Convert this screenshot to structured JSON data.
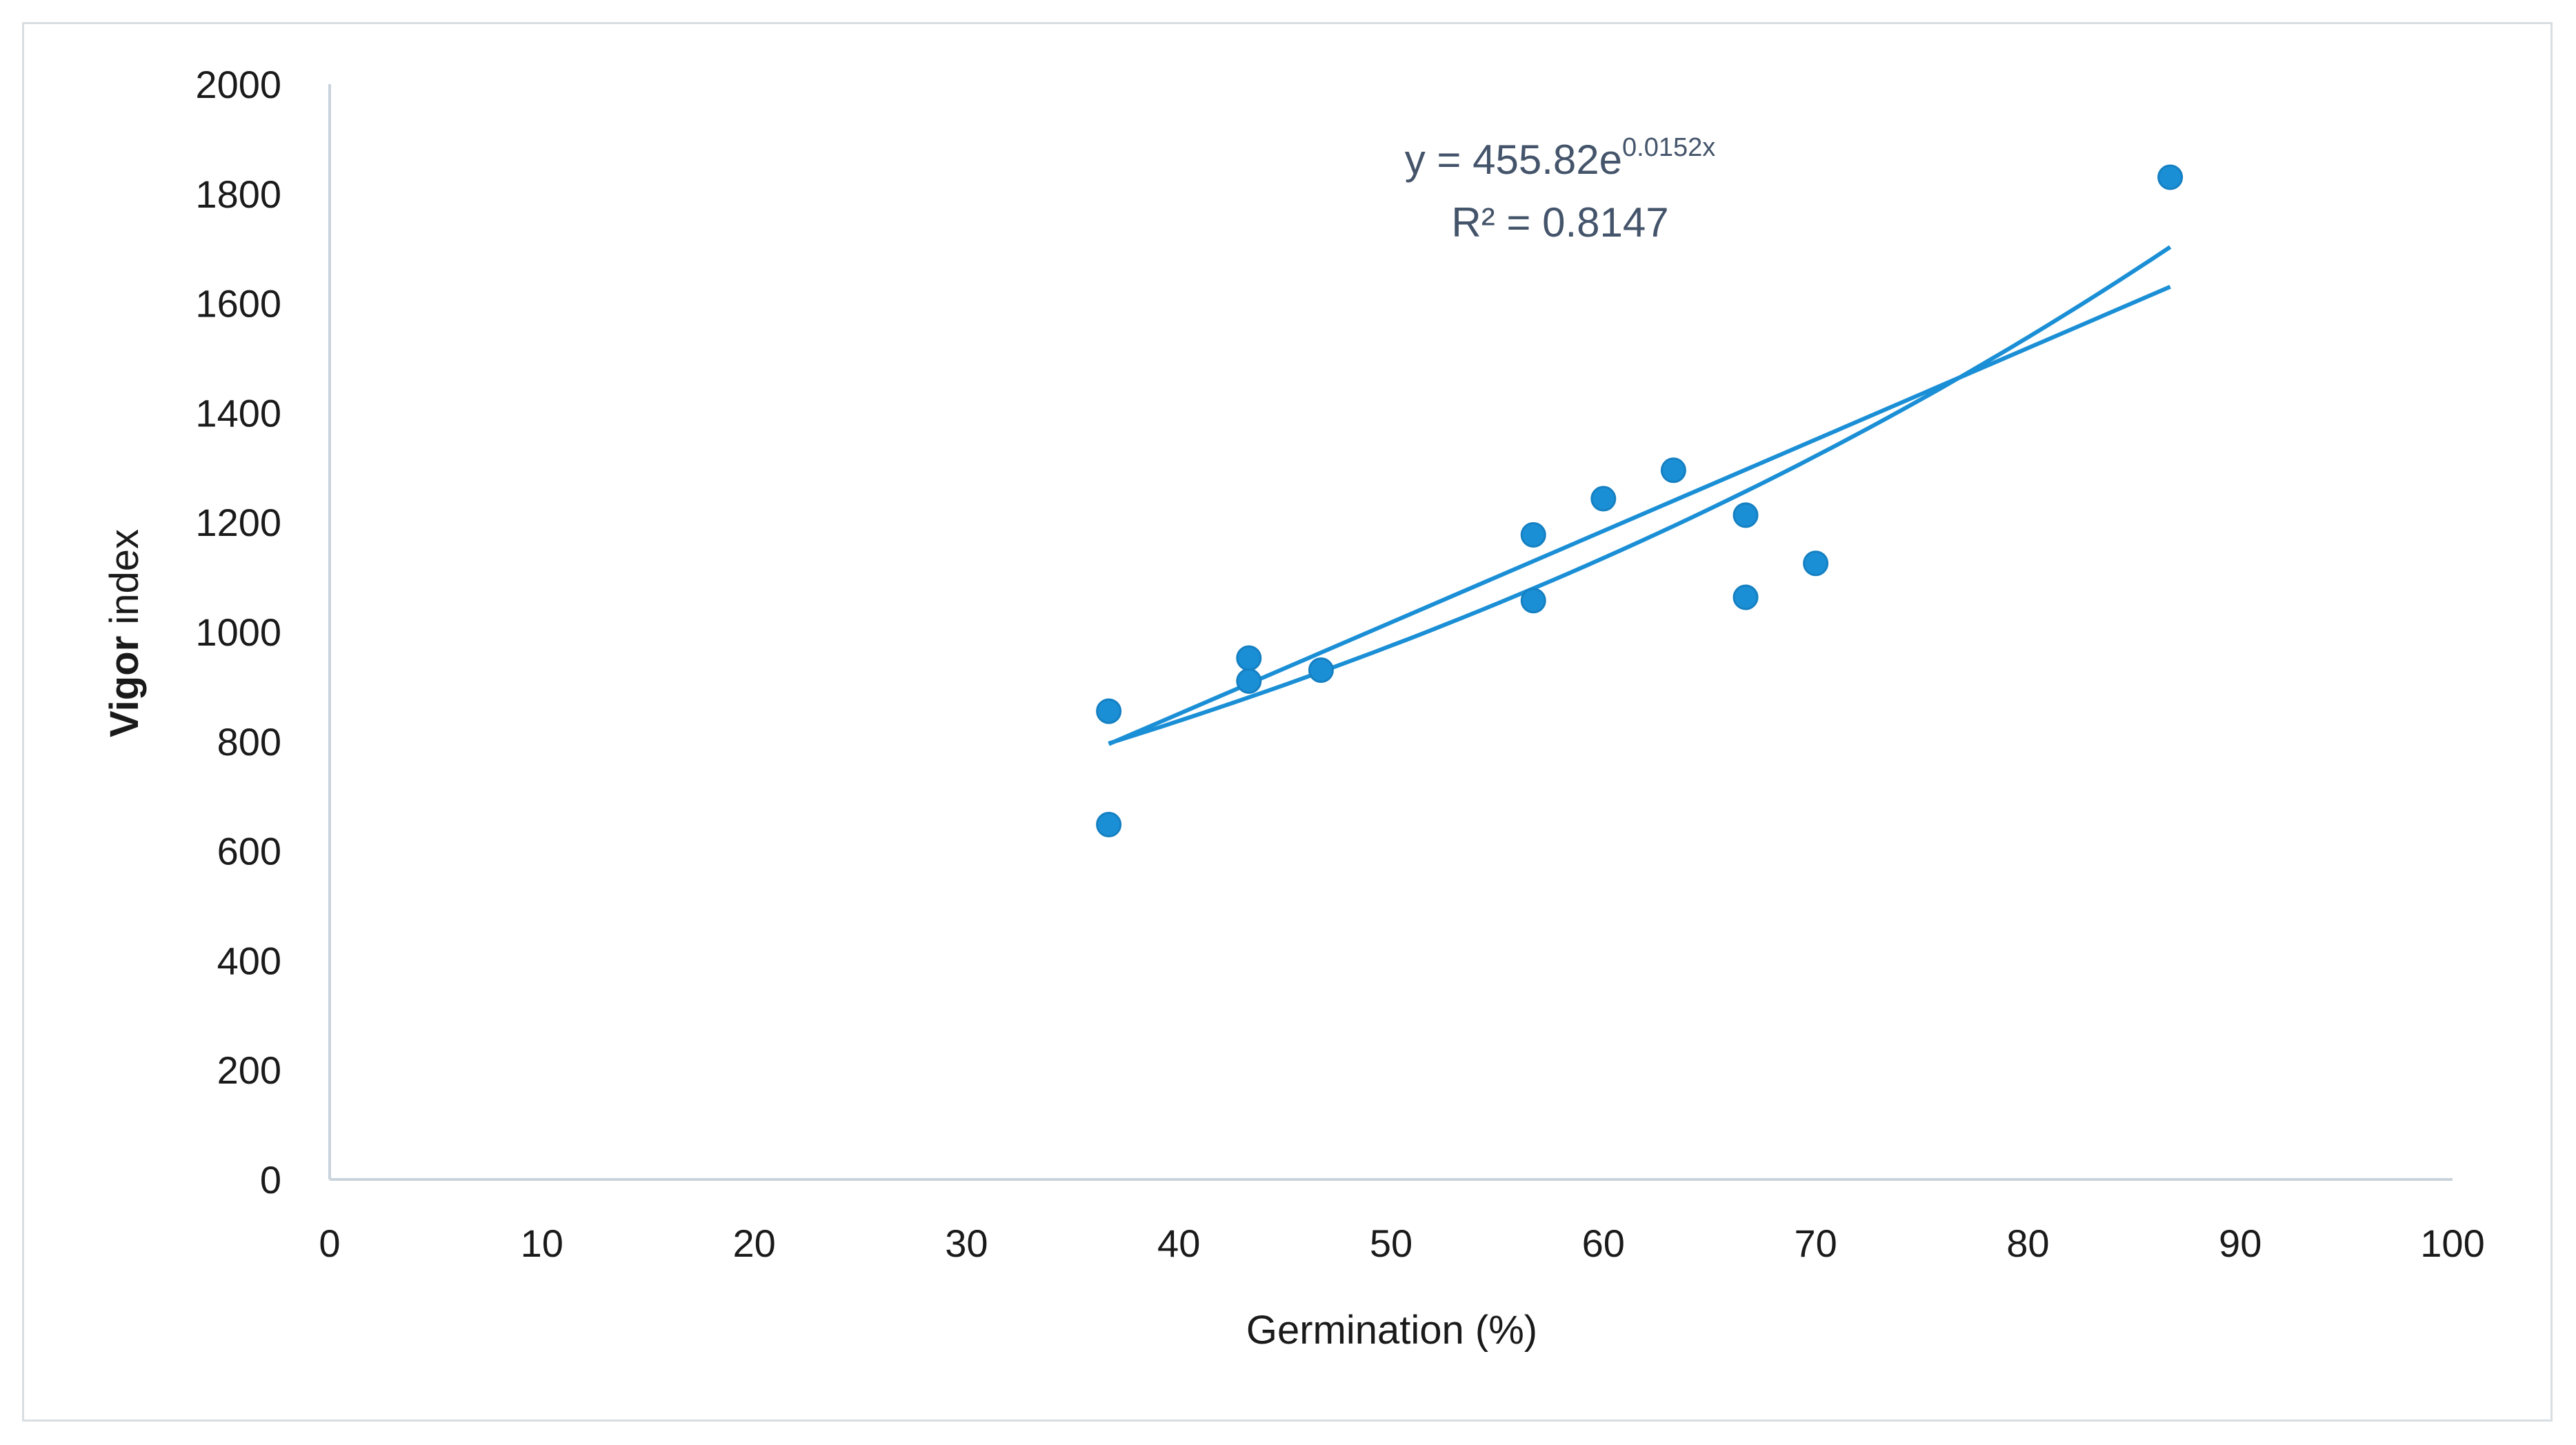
{
  "chart_data": {
    "type": "scatter",
    "xlabel": "Germination (%)",
    "ylabel_bold": "Vigor",
    "ylabel_rest": " index",
    "xlim": [
      0,
      100
    ],
    "ylim": [
      0,
      2000
    ],
    "xticks": [
      0,
      10,
      20,
      30,
      40,
      50,
      60,
      70,
      80,
      90,
      100
    ],
    "yticks": [
      0,
      200,
      400,
      600,
      800,
      1000,
      1200,
      1400,
      1600,
      1800,
      2000
    ],
    "grid": false,
    "legend": "none",
    "points": [
      {
        "x": 36.7,
        "y": 855
      },
      {
        "x": 36.7,
        "y": 648
      },
      {
        "x": 43.3,
        "y": 952
      },
      {
        "x": 43.3,
        "y": 910
      },
      {
        "x": 46.7,
        "y": 930
      },
      {
        "x": 56.7,
        "y": 1177
      },
      {
        "x": 56.7,
        "y": 1057
      },
      {
        "x": 60.0,
        "y": 1243
      },
      {
        "x": 63.3,
        "y": 1295
      },
      {
        "x": 66.7,
        "y": 1213
      },
      {
        "x": 66.7,
        "y": 1063
      },
      {
        "x": 70.0,
        "y": 1125
      },
      {
        "x": 86.7,
        "y": 1830
      }
    ],
    "trendlines": [
      {
        "type": "exponential",
        "a": 455.82,
        "b": 0.0152,
        "x_range": [
          36.7,
          86.7
        ]
      },
      {
        "type": "linear",
        "x_range": [
          36.7,
          86.7
        ],
        "y_range": [
          795,
          1630
        ]
      }
    ],
    "equation_base": "y = 455.82e",
    "equation_exp": "0.0152x",
    "r_squared_text": "R² = 0.8147",
    "colors": {
      "marker": "#1b8fd6",
      "trendline": "#1b8fd6",
      "equation": "#44546a",
      "axis": "#c9d3dc"
    }
  }
}
